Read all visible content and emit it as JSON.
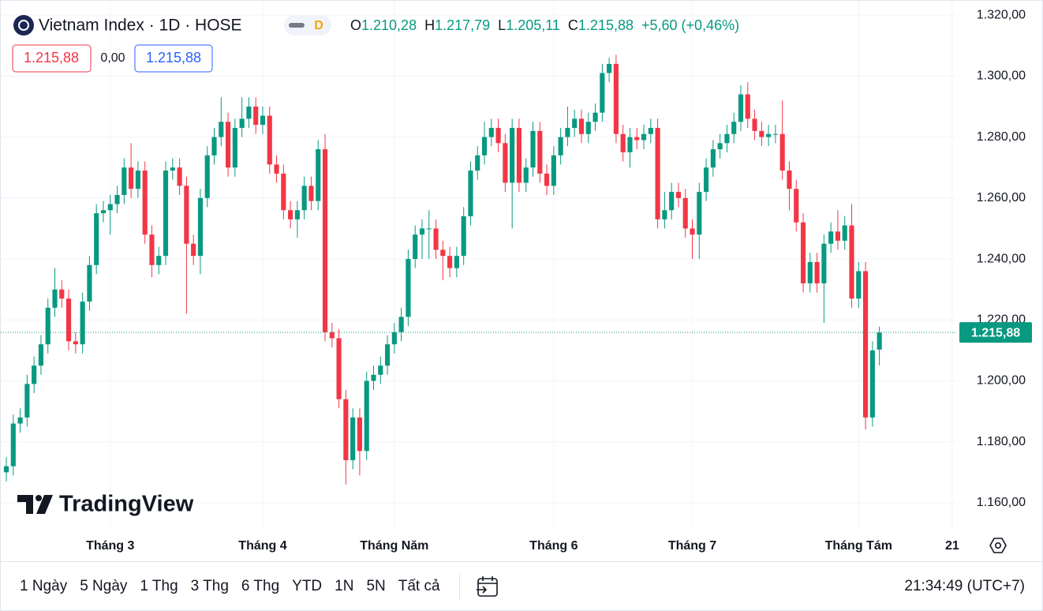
{
  "header": {
    "title": "Vietnam Index · 1D · HOSE",
    "badge": "D",
    "ohlc": [
      {
        "label": "O",
        "value": "1.210,28"
      },
      {
        "label": "H",
        "value": "1.217,79"
      },
      {
        "label": "L",
        "value": "1.205,11"
      },
      {
        "label": "C",
        "value": "1.215,88"
      }
    ],
    "change": "+5,60 (+0,46%)"
  },
  "readout": {
    "bid": "1.215,88",
    "spread": "0,00",
    "ask": "1.215,88"
  },
  "logo": "TradingView",
  "toolbar": {
    "ranges": [
      "1 Ngày",
      "5 Ngày",
      "1 Thg",
      "3 Thg",
      "6 Thg",
      "YTD",
      "1N",
      "5N",
      "Tất cả"
    ],
    "time": "21:34:49 (UTC+7)"
  },
  "chart_data": {
    "type": "candlestick",
    "up_color": "#089981",
    "down_color": "#f23645",
    "open": [
      1170,
      1172,
      1186,
      1188,
      1199,
      1205,
      1212,
      1224,
      1230,
      1227,
      1213,
      1212,
      1226,
      1238,
      1255,
      1256,
      1258,
      1261,
      1270,
      1263,
      1269,
      1248,
      1238,
      1241,
      1269,
      1270,
      1264,
      1245,
      1241,
      1260,
      1274,
      1280,
      1285,
      1270,
      1283,
      1286,
      1290,
      1284,
      1287,
      1271,
      1268,
      1256,
      1253,
      1256,
      1264,
      1259,
      1276,
      1216,
      1214,
      1194,
      1174,
      1188,
      1177,
      1200,
      1202,
      1205,
      1212,
      1216,
      1221,
      1240,
      1248,
      1250,
      1250,
      1243,
      1241,
      1237,
      1241,
      1254,
      1269,
      1274,
      1280,
      1283,
      1278,
      1265,
      1283,
      1265,
      1270,
      1282,
      1268,
      1264,
      1274,
      1280,
      1283,
      1286,
      1281,
      1285,
      1288,
      1301,
      1304,
      1281,
      1275,
      1280,
      1279,
      1281,
      1283,
      1253,
      1256,
      1262,
      1260,
      1250,
      1248,
      1262,
      1270,
      1276,
      1278,
      1281,
      1285,
      1294,
      1286,
      1282,
      1280,
      1281,
      1281,
      1269,
      1263,
      1252,
      1232,
      1239,
      1232,
      1245,
      1249,
      1246,
      1251,
      1227,
      1236,
      1188,
      1210.28
    ],
    "high": [
      1175,
      1189,
      1191,
      1202,
      1208,
      1215,
      1227,
      1237,
      1233,
      1230,
      1216,
      1229,
      1241,
      1258,
      1259,
      1261,
      1264,
      1273,
      1278,
      1272,
      1272,
      1251,
      1244,
      1272,
      1273,
      1273,
      1267,
      1248,
      1263,
      1277,
      1283,
      1293,
      1288,
      1286,
      1293,
      1293,
      1293,
      1290,
      1290,
      1274,
      1271,
      1259,
      1259,
      1267,
      1267,
      1279,
      1281,
      1219,
      1217,
      1197,
      1191,
      1191,
      1203,
      1205,
      1208,
      1215,
      1219,
      1224,
      1243,
      1251,
      1253,
      1256,
      1253,
      1246,
      1244,
      1244,
      1257,
      1272,
      1277,
      1285,
      1286,
      1286,
      1281,
      1286,
      1286,
      1273,
      1285,
      1285,
      1271,
      1277,
      1283,
      1290,
      1289,
      1289,
      1288,
      1291,
      1304,
      1306,
      1307,
      1284,
      1283,
      1283,
      1284,
      1286,
      1286,
      1262,
      1265,
      1265,
      1263,
      1253,
      1265,
      1273,
      1279,
      1281,
      1284,
      1288,
      1297,
      1298,
      1289,
      1285,
      1284,
      1284,
      1292,
      1272,
      1266,
      1255,
      1242,
      1242,
      1248,
      1252,
      1256,
      1254,
      1258,
      1239,
      1239,
      1213,
      1217.79
    ],
    "low": [
      1167,
      1169,
      1183,
      1185,
      1196,
      1202,
      1209,
      1221,
      1224,
      1210,
      1209,
      1209,
      1223,
      1235,
      1252,
      1248,
      1255,
      1258,
      1260,
      1260,
      1245,
      1234,
      1235,
      1238,
      1266,
      1261,
      1222,
      1238,
      1235,
      1257,
      1271,
      1277,
      1267,
      1267,
      1280,
      1283,
      1281,
      1281,
      1268,
      1265,
      1253,
      1250,
      1247,
      1253,
      1256,
      1256,
      1213,
      1211,
      1191,
      1166,
      1171,
      1169,
      1174,
      1197,
      1199,
      1202,
      1209,
      1213,
      1218,
      1237,
      1240,
      1240,
      1240,
      1233,
      1234,
      1234,
      1238,
      1251,
      1266,
      1271,
      1277,
      1275,
      1262,
      1250,
      1262,
      1262,
      1267,
      1265,
      1261,
      1261,
      1271,
      1277,
      1280,
      1278,
      1278,
      1282,
      1285,
      1298,
      1278,
      1272,
      1270,
      1276,
      1276,
      1278,
      1250,
      1250,
      1253,
      1257,
      1247,
      1240,
      1240,
      1259,
      1267,
      1273,
      1275,
      1278,
      1282,
      1283,
      1279,
      1277,
      1277,
      1278,
      1266,
      1256,
      1249,
      1229,
      1229,
      1229,
      1219,
      1242,
      1243,
      1243,
      1224,
      1224,
      1184,
      1185,
      1205.11
    ],
    "close": [
      1172,
      1186,
      1188,
      1199,
      1205,
      1212,
      1224,
      1230,
      1227,
      1213,
      1212,
      1226,
      1238,
      1255,
      1256,
      1258,
      1261,
      1270,
      1263,
      1269,
      1248,
      1238,
      1241,
      1269,
      1270,
      1264,
      1245,
      1241,
      1260,
      1274,
      1280,
      1285,
      1270,
      1283,
      1286,
      1290,
      1284,
      1287,
      1271,
      1268,
      1256,
      1253,
      1256,
      1264,
      1259,
      1276,
      1216,
      1214,
      1194,
      1174,
      1188,
      1177,
      1200,
      1202,
      1205,
      1212,
      1216,
      1221,
      1240,
      1248,
      1250,
      1250,
      1243,
      1241,
      1237,
      1241,
      1254,
      1269,
      1274,
      1280,
      1283,
      1278,
      1265,
      1283,
      1265,
      1270,
      1282,
      1268,
      1264,
      1274,
      1280,
      1283,
      1286,
      1281,
      1285,
      1288,
      1301,
      1304,
      1281,
      1275,
      1280,
      1279,
      1281,
      1283,
      1253,
      1256,
      1262,
      1260,
      1250,
      1248,
      1262,
      1270,
      1276,
      1278,
      1281,
      1285,
      1294,
      1286,
      1282,
      1280,
      1281,
      1281,
      1269,
      1263,
      1252,
      1232,
      1239,
      1232,
      1245,
      1249,
      1246,
      1251,
      1227,
      1236,
      1188,
      1210,
      1215.88
    ],
    "last_label": "1.215,88",
    "ylim": [
      1151.7,
      1324.7
    ],
    "yticks": [
      {
        "value": 1160,
        "label": "1.160,00"
      },
      {
        "value": 1180,
        "label": "1.180,00"
      },
      {
        "value": 1200,
        "label": "1.200,00"
      },
      {
        "value": 1220,
        "label": "1.220,00"
      },
      {
        "value": 1240,
        "label": "1.240,00"
      },
      {
        "value": 1260,
        "label": "1.260,00"
      },
      {
        "value": 1280,
        "label": "1.280,00"
      },
      {
        "value": 1300,
        "label": "1.300,00"
      },
      {
        "value": 1320,
        "label": "1.320,00"
      }
    ],
    "xlim": [
      -0.8,
      137.2
    ],
    "xticks": [
      {
        "value": 15,
        "label": "Tháng 3"
      },
      {
        "value": 37,
        "label": "Tháng 4"
      },
      {
        "value": 56,
        "label": "Tháng Năm"
      },
      {
        "value": 79,
        "label": "Tháng 6"
      },
      {
        "value": 99,
        "label": "Tháng 7"
      },
      {
        "value": 123,
        "label": "Tháng Tám"
      },
      {
        "value": 136.5,
        "label": "21"
      }
    ],
    "grid": true
  }
}
